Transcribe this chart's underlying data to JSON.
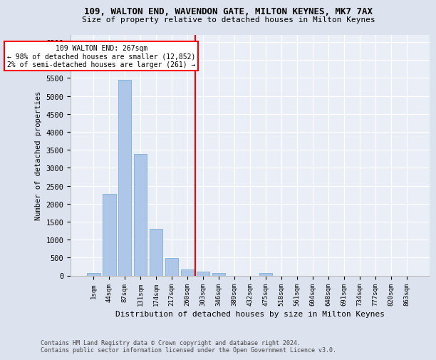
{
  "title1": "109, WALTON END, WAVENDON GATE, MILTON KEYNES, MK7 7AX",
  "title2": "Size of property relative to detached houses in Milton Keynes",
  "xlabel": "Distribution of detached houses by size in Milton Keynes",
  "ylabel": "Number of detached properties",
  "footnote1": "Contains HM Land Registry data © Crown copyright and database right 2024.",
  "footnote2": "Contains public sector information licensed under the Open Government Licence v3.0.",
  "bar_labels": [
    "1sqm",
    "44sqm",
    "87sqm",
    "131sqm",
    "174sqm",
    "217sqm",
    "260sqm",
    "303sqm",
    "346sqm",
    "389sqm",
    "432sqm",
    "475sqm",
    "518sqm",
    "561sqm",
    "604sqm",
    "648sqm",
    "691sqm",
    "734sqm",
    "777sqm",
    "820sqm",
    "863sqm"
  ],
  "bar_values": [
    75,
    2270,
    5450,
    3390,
    1300,
    490,
    170,
    100,
    70,
    0,
    0,
    65,
    0,
    0,
    0,
    0,
    0,
    0,
    0,
    0,
    0
  ],
  "bar_color": "#aec6e8",
  "bar_edge_color": "#7aafd4",
  "vline_x": 6.5,
  "vline_color": "red",
  "annotation_title": "109 WALTON END: 267sqm",
  "annotation_line1": "← 98% of detached houses are smaller (12,852)",
  "annotation_line2": "2% of semi-detached houses are larger (261) →",
  "box_facecolor": "white",
  "box_edgecolor": "red",
  "ylim": [
    0,
    6700
  ],
  "yticks": [
    0,
    500,
    1000,
    1500,
    2000,
    2500,
    3000,
    3500,
    4000,
    4500,
    5000,
    5500,
    6000,
    6500
  ],
  "bg_color": "#dde3ee",
  "plot_bg_color": "#eaeff7"
}
